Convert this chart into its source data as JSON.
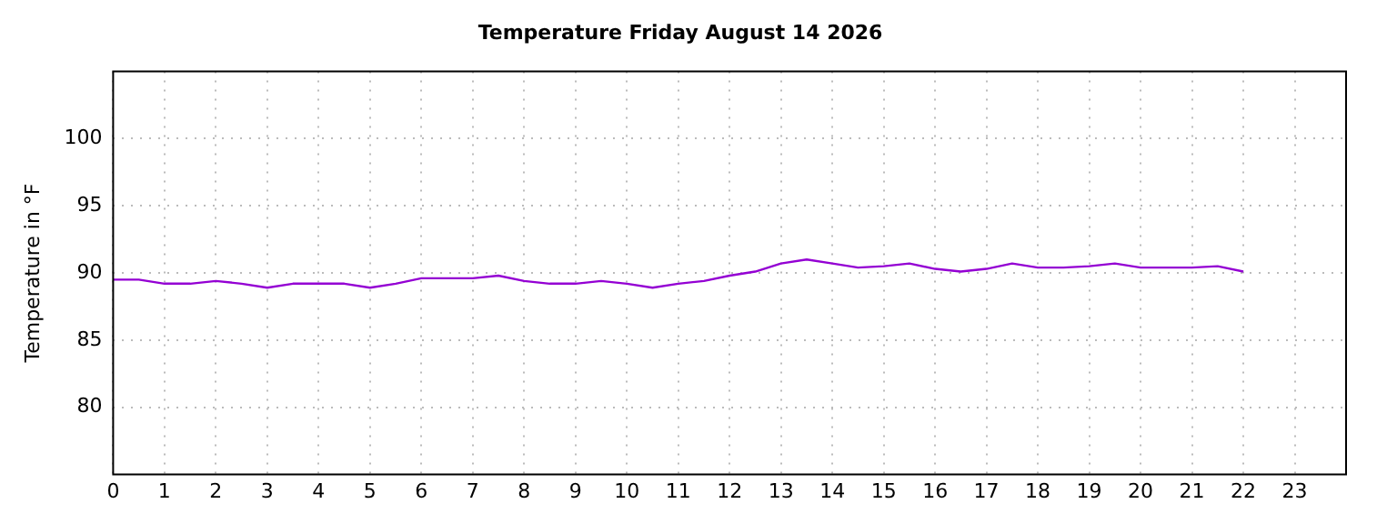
{
  "chart_data": {
    "type": "line",
    "title": "Temperature Friday August 14 2026",
    "ylabel": "Temperature in °F",
    "x": [
      0,
      0.5,
      1,
      1.5,
      2,
      2.5,
      3,
      3.5,
      4,
      4.5,
      5,
      5.5,
      6,
      6.5,
      7,
      7.5,
      8,
      8.5,
      9,
      9.5,
      10,
      10.5,
      11,
      11.5,
      12,
      12.5,
      13,
      13.5,
      14,
      14.5,
      15,
      15.5,
      16,
      16.5,
      17,
      17.5,
      18,
      18.5,
      19,
      19.5,
      20,
      20.5,
      21,
      21.5,
      22
    ],
    "series": [
      {
        "color": "#9400d3",
        "values": [
          89.5,
          89.5,
          89.2,
          89.2,
          89.4,
          89.2,
          88.9,
          89.2,
          89.2,
          89.2,
          88.9,
          89.2,
          89.6,
          89.6,
          89.6,
          89.8,
          89.4,
          89.2,
          89.2,
          89.4,
          89.2,
          88.9,
          89.2,
          89.4,
          89.8,
          90.1,
          90.7,
          91.0,
          90.7,
          90.4,
          90.5,
          90.7,
          90.3,
          90.1,
          90.3,
          90.7,
          90.4,
          90.4,
          90.5,
          90.7,
          90.4,
          90.4,
          90.4,
          90.5,
          90.1
        ]
      }
    ],
    "xlim": [
      0,
      24
    ],
    "xticks": [
      0,
      1,
      2,
      3,
      4,
      5,
      6,
      7,
      8,
      9,
      10,
      11,
      12,
      13,
      14,
      15,
      16,
      17,
      18,
      19,
      20,
      21,
      22,
      23
    ],
    "ylim": [
      75,
      105
    ],
    "yticks": [
      80,
      85,
      90,
      95,
      100
    ],
    "grid": true,
    "legend": false,
    "marker": "none",
    "line_style": "solid"
  }
}
